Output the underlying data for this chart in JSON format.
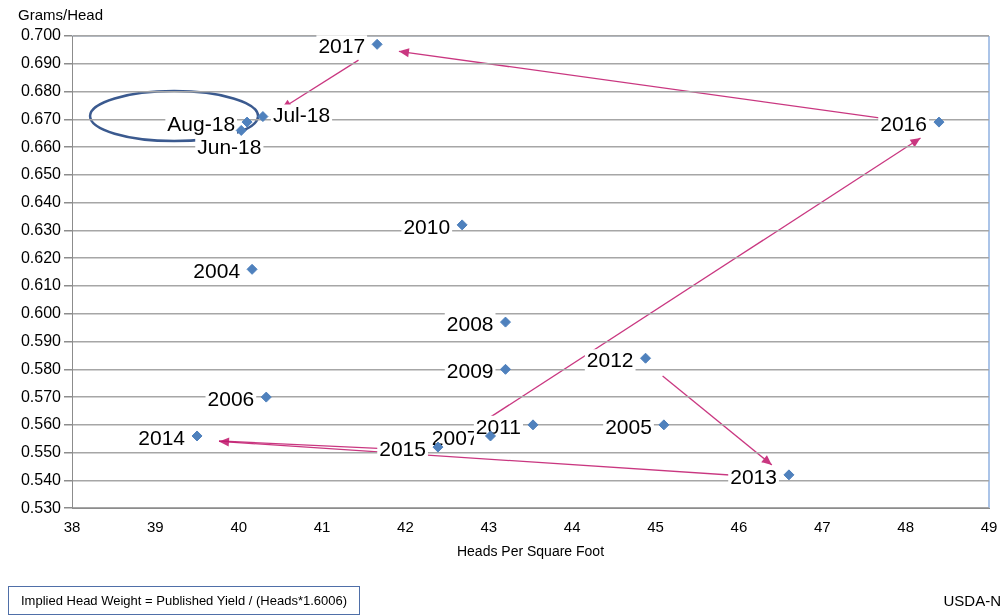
{
  "chart_data": {
    "type": "scatter",
    "xlabel": "Heads Per Square Foot",
    "ylabel": "Grams/Head",
    "x": [
      40.16,
      45.1,
      40.33,
      43.02,
      43.2,
      43.2,
      42.68,
      43.53,
      44.88,
      46.6,
      39.5,
      42.39,
      48.4,
      41.66,
      40.03,
      40.29,
      40.1
    ],
    "series": [
      {
        "color": "#4f81bd",
        "values": [
          0.616,
          0.56,
          0.57,
          0.556,
          0.597,
          0.58,
          0.632,
          0.56,
          0.584,
          0.542,
          0.556,
          0.552,
          0.669,
          0.697,
          0.666,
          0.671,
          0.669
        ]
      }
    ],
    "marker": "diamond",
    "grid": "y",
    "legend": false,
    "xlim": [
      38,
      49
    ],
    "xticks": [
      38,
      39,
      40,
      41,
      42,
      43,
      44,
      45,
      46,
      47,
      48,
      49
    ],
    "ylim": [
      0.53,
      0.7
    ],
    "yticks": [
      {
        "value": 0.53,
        "label": "0.530"
      },
      {
        "value": 0.54,
        "label": "0.540"
      },
      {
        "value": 0.55,
        "label": "0.550"
      },
      {
        "value": 0.56,
        "label": "0.560"
      },
      {
        "value": 0.57,
        "label": "0.570"
      },
      {
        "value": 0.58,
        "label": "0.580"
      },
      {
        "value": 0.59,
        "label": "0.590"
      },
      {
        "value": 0.6,
        "label": "0.600"
      },
      {
        "value": 0.61,
        "label": "0.610"
      },
      {
        "value": 0.62,
        "label": "0.620"
      },
      {
        "value": 0.63,
        "label": "0.630"
      },
      {
        "value": 0.64,
        "label": "0.640"
      },
      {
        "value": 0.65,
        "label": "0.650"
      },
      {
        "value": 0.66,
        "label": "0.660"
      },
      {
        "value": 0.67,
        "label": "0.670"
      },
      {
        "value": 0.68,
        "label": "0.680"
      },
      {
        "value": 0.69,
        "label": "0.690"
      },
      {
        "value": 0.7,
        "label": "0.700"
      }
    ],
    "annotations": [
      {
        "text": "2004",
        "x": 40.16,
        "y": 0.616
      },
      {
        "text": "2005",
        "x": 45.1,
        "y": 0.56
      },
      {
        "text": "2006",
        "x": 40.33,
        "y": 0.57
      },
      {
        "text": "2007",
        "x": 43.02,
        "y": 0.556
      },
      {
        "text": "2008",
        "x": 43.2,
        "y": 0.597
      },
      {
        "text": "2009",
        "x": 43.2,
        "y": 0.58
      },
      {
        "text": "2010",
        "x": 42.68,
        "y": 0.632
      },
      {
        "text": "2011",
        "x": 43.53,
        "y": 0.56
      },
      {
        "text": "2012",
        "x": 44.88,
        "y": 0.584
      },
      {
        "text": "2013",
        "x": 46.6,
        "y": 0.542
      },
      {
        "text": "2014",
        "x": 39.5,
        "y": 0.556
      },
      {
        "text": "2015",
        "x": 42.39,
        "y": 0.552
      },
      {
        "text": "2016",
        "x": 48.4,
        "y": 0.669
      },
      {
        "text": "2017",
        "x": 41.66,
        "y": 0.697
      },
      {
        "text": "Jun-18",
        "x": 40.03,
        "y": 0.666
      },
      {
        "text": "Jul-18",
        "x": 40.29,
        "y": 0.671
      },
      {
        "text": "Aug-18",
        "x": 40.1,
        "y": 0.669
      },
      "Implied Head Weight = Published Yield / (Heads*1.6006)",
      "USDA-N"
    ]
  }
}
